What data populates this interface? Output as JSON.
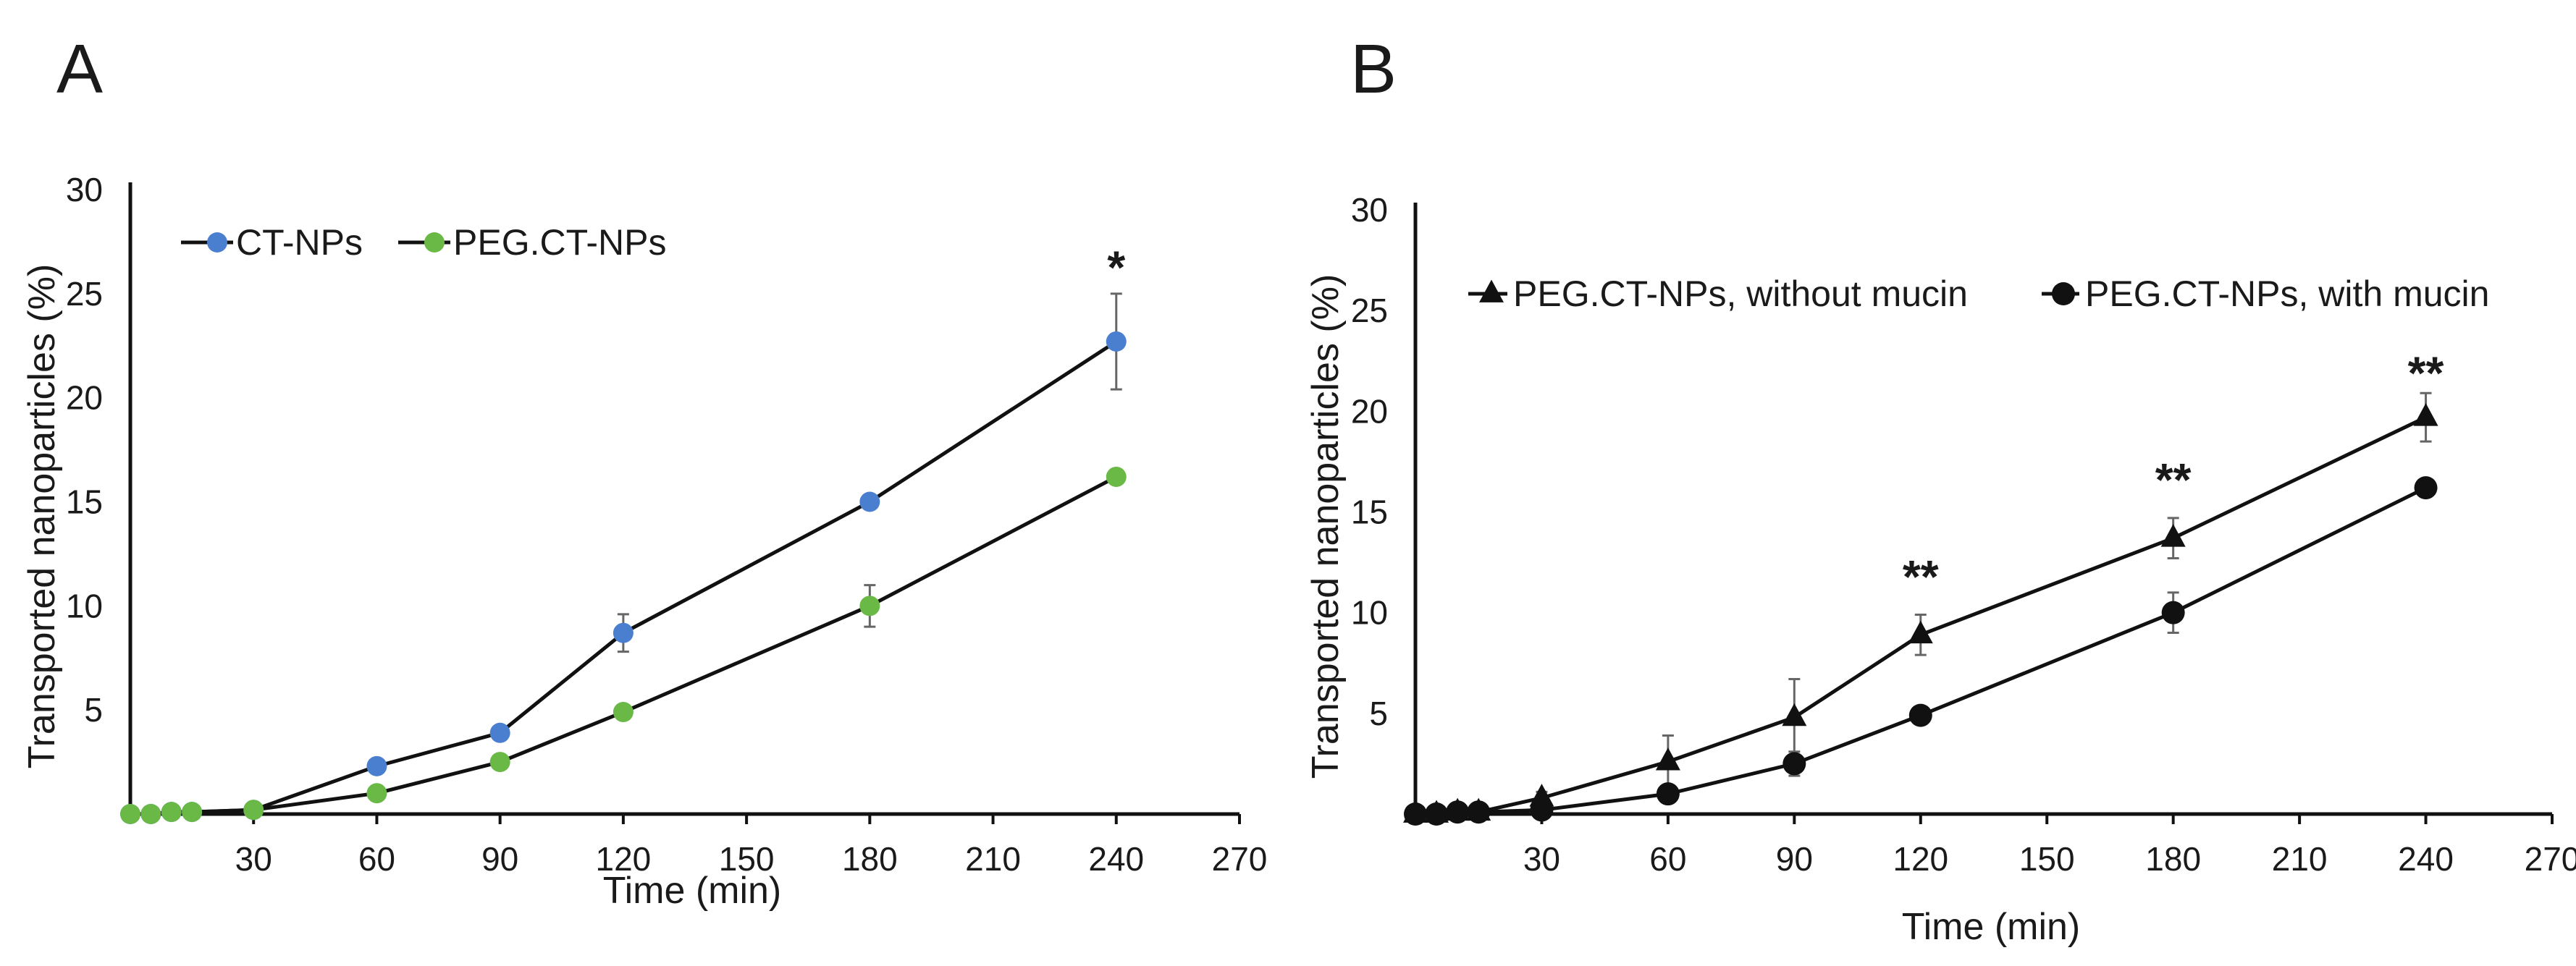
{
  "chart_data": [
    {
      "type": "line",
      "panel_label": "A",
      "title": "",
      "xlabel": "Time (min)",
      "ylabel": "Transported nanoparticles (%)",
      "xlim": [
        0,
        270
      ],
      "ylim": [
        0,
        30
      ],
      "xticks": [
        30,
        60,
        90,
        120,
        150,
        180,
        210,
        240,
        270
      ],
      "yticks": [
        5,
        10,
        15,
        20,
        25,
        30
      ],
      "grid": false,
      "legend_position": "top-left",
      "series": [
        {
          "name": "CT-NPs",
          "color": "#4a7fd0",
          "marker": "circle",
          "x": [
            0,
            5,
            10,
            15,
            30,
            60,
            90,
            120,
            180,
            240
          ],
          "y": [
            0.0,
            0.0,
            0.1,
            0.1,
            0.2,
            2.3,
            3.9,
            8.7,
            15.0,
            22.7
          ],
          "error": [
            0,
            0,
            0,
            0,
            0,
            0.2,
            0.3,
            0.9,
            0.3,
            2.3
          ]
        },
        {
          "name": "PEG.CT-NPs",
          "color": "#6ab947",
          "marker": "circle",
          "x": [
            0,
            5,
            10,
            15,
            30,
            60,
            90,
            120,
            180,
            240
          ],
          "y": [
            0.0,
            0.0,
            0.1,
            0.1,
            0.2,
            1.0,
            2.5,
            4.9,
            10.0,
            16.2
          ],
          "error": [
            0,
            0,
            0,
            0,
            0,
            0.1,
            0.2,
            0.2,
            1.0,
            0.2
          ]
        }
      ],
      "annotations": [
        {
          "text": "*",
          "x": 240,
          "y": 25.5
        }
      ]
    },
    {
      "type": "line",
      "panel_label": "B",
      "title": "",
      "xlabel": "Time (min)",
      "ylabel": "Transported nanoparticles (%)",
      "xlim": [
        0,
        270
      ],
      "ylim": [
        0,
        30
      ],
      "xticks": [
        30,
        60,
        90,
        120,
        150,
        180,
        210,
        240,
        270
      ],
      "yticks": [
        5,
        10,
        15,
        20,
        25,
        30
      ],
      "grid": false,
      "legend_position": "top",
      "series": [
        {
          "name": "PEG.CT-NPs, without mucin",
          "color": "#111111",
          "marker": "triangle",
          "x": [
            0,
            5,
            10,
            15,
            30,
            60,
            90,
            120,
            180,
            240
          ],
          "y": [
            0.0,
            0.0,
            0.1,
            0.1,
            0.8,
            2.6,
            4.8,
            8.9,
            13.7,
            19.7
          ],
          "error": [
            0,
            0,
            0,
            0,
            0.3,
            1.3,
            1.9,
            1.0,
            1.0,
            1.2
          ]
        },
        {
          "name": "PEG.CT-NPs, with mucin",
          "color": "#111111",
          "marker": "circle",
          "x": [
            0,
            5,
            10,
            15,
            30,
            60,
            90,
            120,
            180,
            240
          ],
          "y": [
            0.0,
            0.0,
            0.1,
            0.1,
            0.2,
            1.0,
            2.5,
            4.9,
            10.0,
            16.2
          ],
          "error": [
            0,
            0,
            0,
            0,
            0,
            0.1,
            0.6,
            0.2,
            1.0,
            0.2
          ]
        }
      ],
      "annotations": [
        {
          "text": "**",
          "x": 120,
          "y": 11.0
        },
        {
          "text": "**",
          "x": 180,
          "y": 15.8
        },
        {
          "text": "**",
          "x": 240,
          "y": 21.1
        }
      ]
    }
  ]
}
